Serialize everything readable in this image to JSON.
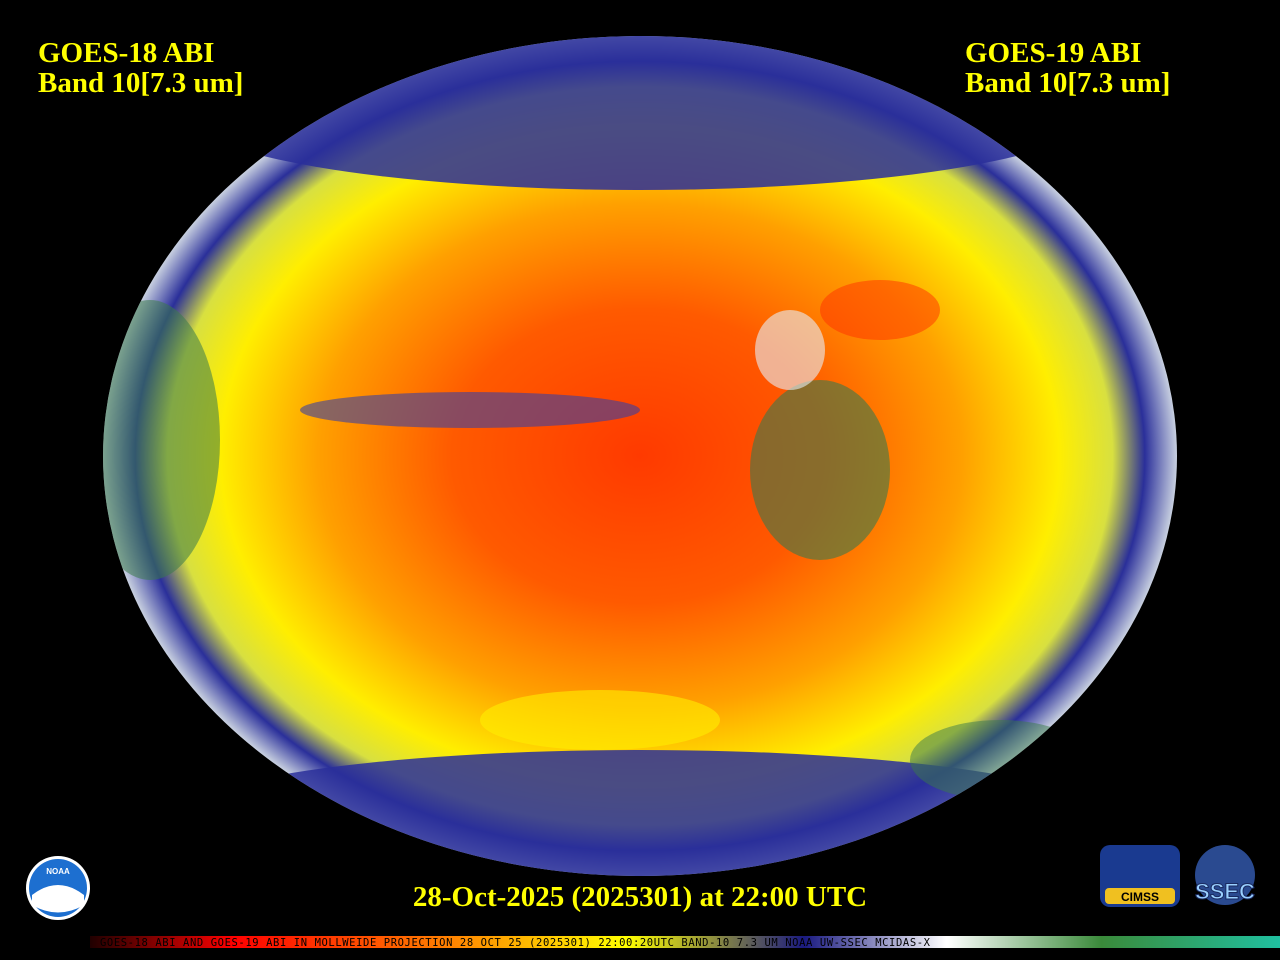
{
  "header": {
    "left": {
      "title": "GOES-18 ABI",
      "band": "Band 10[7.3 um]"
    },
    "right": {
      "title": "GOES-19 ABI",
      "band": "Band 10[7.3 um]"
    }
  },
  "timestamp": "28-Oct-2025 (2025301) at 22:00 UTC",
  "logos": {
    "noaa": "NOAA",
    "cimss": "CIMSS",
    "ssec": "SSEC"
  },
  "footer": "GOES-18 ABI AND GOES-19 ABI IN MOLLWEIDE PROJECTION 28 OCT 25 (2025301) 22:00:20UTC BAND-10 7.3 UM NOAA UW-SSEC MCIDAS-X"
}
